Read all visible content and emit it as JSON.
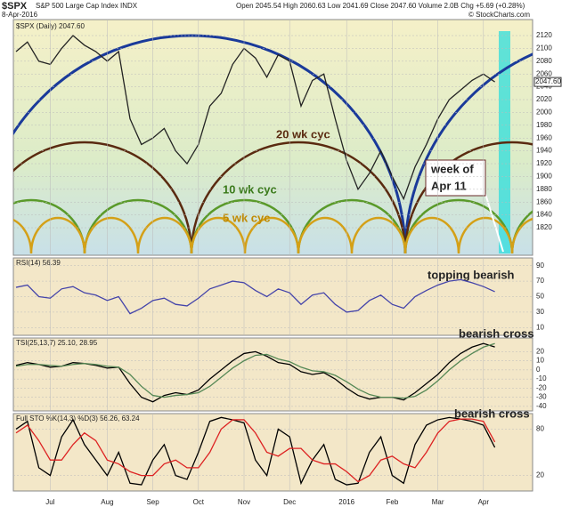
{
  "header": {
    "symbol": "$SPX",
    "name": "S&P 500 Large Cap Index INDX",
    "date": "8-Apr-2016",
    "quote": "Open 2045.54  High 2060.63  Low 2041.69  Close 2047.60  Volume 2.0B  Chg +5.69 (+0.28%)",
    "source": "© StockCharts.com"
  },
  "chart_data": [
    {
      "type": "line",
      "legend": "$SPX (Daily) 2047.60",
      "last_label": "2047.60",
      "categories": [
        null,
        null,
        null,
        "Jul",
        null,
        null,
        null,
        null,
        "Aug",
        null,
        null,
        null,
        "Sep",
        null,
        null,
        null,
        "Oct",
        null,
        null,
        null,
        "Nov",
        null,
        null,
        null,
        "Dec",
        null,
        null,
        null,
        null,
        "2016",
        null,
        null,
        null,
        "Feb",
        null,
        null,
        null,
        "Mar",
        null,
        null,
        null,
        "Apr",
        null
      ],
      "series": [
        {
          "name": "$SPX",
          "color": "#222222",
          "values": [
            2095,
            2110,
            2080,
            2075,
            2100,
            2120,
            2105,
            2095,
            2080,
            2095,
            1990,
            1950,
            1960,
            1975,
            1940,
            1920,
            1950,
            2010,
            2030,
            2075,
            2100,
            2085,
            2055,
            2090,
            2080,
            2010,
            2050,
            2060,
            1990,
            1925,
            1880,
            1905,
            1940,
            1900,
            1865,
            1915,
            1950,
            1990,
            2020,
            2035,
            2050,
            2060,
            2047.6
          ]
        }
      ],
      "ylim": [
        1777,
        2145
      ],
      "yticks": [
        1820,
        1840,
        1860,
        1880,
        1900,
        1920,
        1940,
        1960,
        1980,
        2000,
        2020,
        2040,
        2060,
        2080,
        2100,
        2120
      ],
      "annotations": [
        "20 wk cyc",
        "10 wk cyc",
        "5 wk cyc",
        "week of",
        "Apr 11"
      ]
    },
    {
      "type": "line",
      "legend": "RSI(14) 56.39",
      "series": [
        {
          "name": "RSI",
          "color": "#4444aa",
          "values": [
            62,
            65,
            50,
            48,
            60,
            63,
            55,
            52,
            45,
            50,
            28,
            35,
            45,
            48,
            40,
            38,
            48,
            60,
            65,
            70,
            68,
            58,
            50,
            60,
            55,
            40,
            52,
            55,
            40,
            30,
            32,
            45,
            52,
            40,
            35,
            50,
            58,
            65,
            70,
            72,
            68,
            63,
            56.39
          ]
        }
      ],
      "ylim": [
        0,
        100
      ],
      "yticks": [
        10,
        30,
        50,
        70,
        90
      ],
      "annotations": [
        "topping bearish"
      ]
    },
    {
      "type": "line",
      "legend": "TSI(25,13,7) 25.10, 28.95",
      "series": [
        {
          "name": "TSI",
          "color": "#000000",
          "values": [
            5,
            8,
            6,
            3,
            4,
            8,
            7,
            5,
            2,
            3,
            -15,
            -30,
            -35,
            -28,
            -25,
            -27,
            -22,
            -10,
            0,
            10,
            18,
            20,
            15,
            8,
            6,
            -2,
            -5,
            -3,
            -10,
            -20,
            -28,
            -32,
            -30,
            -30,
            -33,
            -25,
            -15,
            -5,
            8,
            18,
            25,
            29,
            25.1
          ]
        },
        {
          "name": "Signal",
          "color": "#558855",
          "values": [
            4,
            6,
            6,
            5,
            4,
            6,
            7,
            6,
            4,
            3,
            -5,
            -18,
            -28,
            -30,
            -28,
            -27,
            -25,
            -18,
            -8,
            2,
            10,
            16,
            17,
            12,
            9,
            3,
            -1,
            -2,
            -6,
            -13,
            -21,
            -27,
            -30,
            -30,
            -31,
            -29,
            -22,
            -12,
            0,
            10,
            18,
            25,
            28.95
          ]
        }
      ],
      "ylim": [
        -45,
        35
      ],
      "yticks": [
        -40,
        -30,
        -20,
        -10,
        0,
        10,
        20
      ],
      "annotations": [
        "bearish cross"
      ]
    },
    {
      "type": "line",
      "legend": "Full STO %K(14,3) %D(3) 56.26, 63.24",
      "series": [
        {
          "name": "%K",
          "color": "#000000",
          "values": [
            80,
            90,
            30,
            20,
            70,
            92,
            60,
            40,
            20,
            50,
            10,
            8,
            40,
            60,
            20,
            15,
            50,
            90,
            95,
            92,
            88,
            40,
            20,
            80,
            70,
            10,
            40,
            60,
            15,
            8,
            10,
            50,
            70,
            20,
            10,
            60,
            85,
            92,
            95,
            93,
            90,
            85,
            56.26
          ]
        },
        {
          "name": "%D",
          "color": "#dd2222",
          "values": [
            75,
            85,
            65,
            40,
            40,
            60,
            75,
            65,
            40,
            35,
            25,
            20,
            20,
            35,
            40,
            30,
            30,
            50,
            80,
            92,
            92,
            75,
            50,
            45,
            55,
            55,
            40,
            35,
            35,
            25,
            12,
            20,
            40,
            45,
            35,
            30,
            50,
            75,
            90,
            93,
            93,
            90,
            63.24
          ]
        }
      ],
      "ylim": [
        0,
        100
      ],
      "yticks": [
        20,
        80
      ],
      "annotations": [
        "bearish cross"
      ]
    }
  ]
}
